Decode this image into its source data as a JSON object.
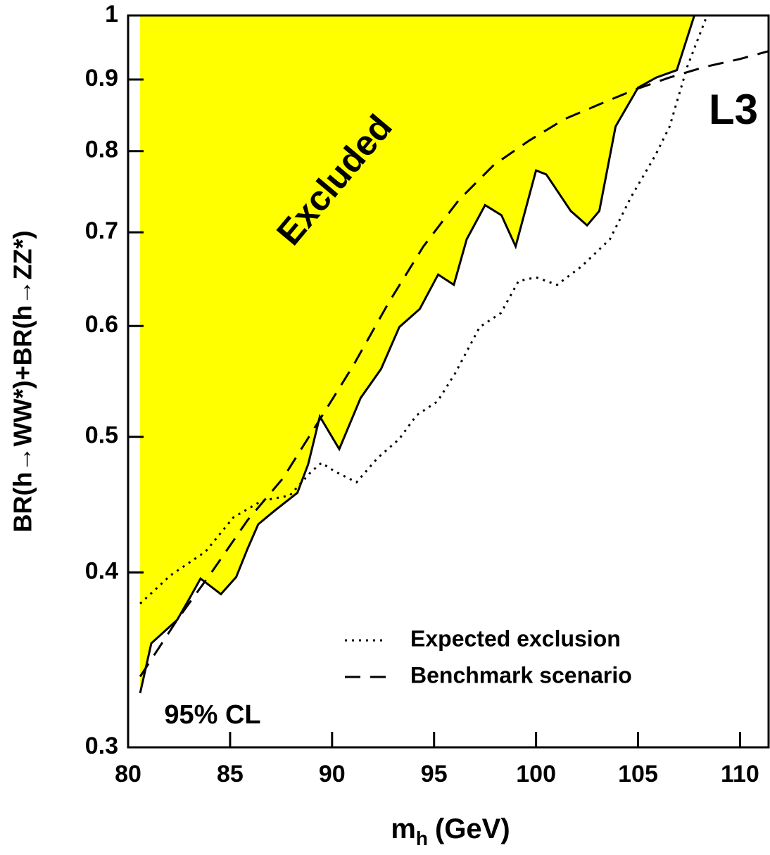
{
  "chart_data": {
    "type": "line",
    "x_label": "m",
    "x_label_subscript": "h",
    "x_label_unit": "(GeV)",
    "y_label": "BR(h→WW*)+BR(h→ZZ*)",
    "xlim": [
      80,
      111.4
    ],
    "xticks": [
      80,
      85,
      90,
      95,
      100,
      105,
      110
    ],
    "ylim": [
      0.3,
      1
    ],
    "yticks": [
      0.3,
      0.4,
      0.5,
      0.6,
      0.7,
      0.8,
      0.9,
      1
    ],
    "ylog": true,
    "legend": "lower-right",
    "fill_color": "#ffff00",
    "annotations": [
      "Excluded",
      "L3",
      "95% CL"
    ],
    "series": [
      {
        "color": "#000000",
        "style": "solid",
        "fill": true,
        "x": [
          80.59,
          81.14,
          82.41,
          83.0,
          83.55,
          84.55,
          85.3,
          85.86,
          86.38,
          87.2,
          88.3,
          88.83,
          89.4,
          90.35,
          91.4,
          92.4,
          93.3,
          94.3,
          95.2,
          95.97,
          96.6,
          97.5,
          98.3,
          99.0,
          100.0,
          100.5,
          101.7,
          102.5,
          103.1,
          103.9,
          105.0,
          105.9,
          106.9,
          107.76
        ],
        "values": [
          0.328,
          0.356,
          0.37,
          0.383,
          0.396,
          0.386,
          0.397,
          0.416,
          0.433,
          0.443,
          0.456,
          0.478,
          0.517,
          0.49,
          0.533,
          0.559,
          0.599,
          0.617,
          0.653,
          0.642,
          0.692,
          0.732,
          0.72,
          0.684,
          0.775,
          0.77,
          0.725,
          0.708,
          0.725,
          0.833,
          0.888,
          0.903,
          0.914,
          1.0
        ]
      },
      {
        "name": "Expected exclusion",
        "color": "#000000",
        "style": "dotted",
        "x": [
          80.59,
          82.07,
          83.8,
          85.17,
          86.55,
          87.93,
          88.97,
          89.48,
          90.17,
          91.2,
          92.24,
          93.28,
          94.14,
          95.17,
          96.03,
          97.24,
          98.28,
          99.14,
          100.0,
          101.03,
          102.24,
          103.62,
          104.66,
          105.86,
          106.55,
          107.41,
          108.38
        ],
        "values": [
          0.38,
          0.398,
          0.414,
          0.438,
          0.45,
          0.454,
          0.472,
          0.479,
          0.472,
          0.464,
          0.483,
          0.498,
          0.518,
          0.53,
          0.555,
          0.599,
          0.613,
          0.646,
          0.65,
          0.642,
          0.662,
          0.692,
          0.742,
          0.795,
          0.833,
          0.919,
          1.0
        ]
      },
      {
        "name": "Benchmark scenario",
        "color": "#000000",
        "style": "dashed",
        "x": [
          80.59,
          82.41,
          84.14,
          85.86,
          87.59,
          89.31,
          91.03,
          92.76,
          94.48,
          96.21,
          97.93,
          99.66,
          101.38,
          103.1,
          104.83,
          106.55,
          108.28,
          110.0,
          111.4
        ],
        "values": [
          0.337,
          0.37,
          0.401,
          0.436,
          0.467,
          0.512,
          0.562,
          0.623,
          0.684,
          0.738,
          0.782,
          0.814,
          0.843,
          0.864,
          0.885,
          0.903,
          0.919,
          0.931,
          0.943
        ]
      }
    ]
  }
}
